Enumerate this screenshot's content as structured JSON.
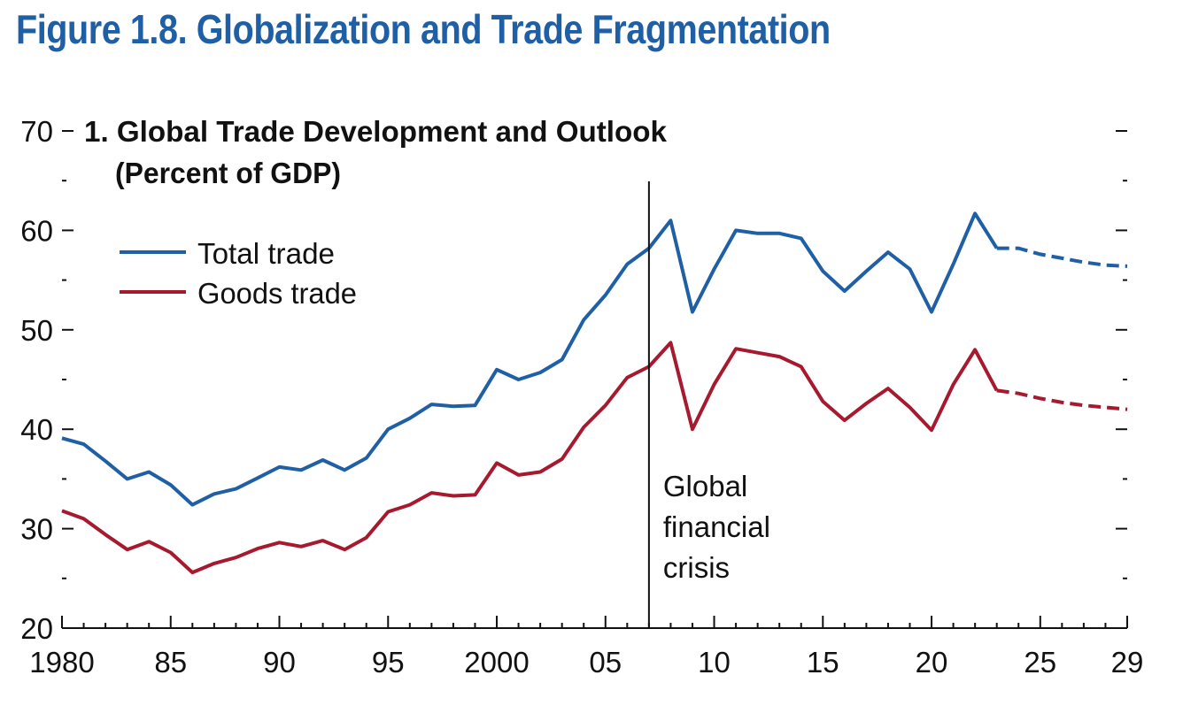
{
  "figure_title": "Figure 1.8.  Globalization and Trade Fragmentation",
  "chart_data": {
    "type": "line",
    "title": "1. Global Trade Development and Outlook",
    "subtitle": "(Percent of GDP)",
    "xlabel": "",
    "ylabel": "",
    "xlim": [
      1980,
      2029
    ],
    "ylim": [
      20,
      70
    ],
    "y_major_ticks": [
      20,
      30,
      40,
      50,
      60,
      70
    ],
    "y_tick_labels": [
      "20",
      "30",
      "40",
      "50",
      "60",
      "70"
    ],
    "x_ticks": [
      1980,
      1985,
      1990,
      1995,
      2000,
      2005,
      2010,
      2015,
      2020,
      2025,
      2029
    ],
    "x_tick_labels": [
      "1980",
      "85",
      "90",
      "95",
      "2000",
      "05",
      "10",
      "15",
      "20",
      "25",
      "29"
    ],
    "grid": false,
    "legend_position": "top-left",
    "forecast_start": 2023,
    "series": [
      {
        "name": "Total trade",
        "color": "#1f5fa6",
        "x": [
          1980,
          1981,
          1982,
          1983,
          1984,
          1985,
          1986,
          1987,
          1988,
          1989,
          1990,
          1991,
          1992,
          1993,
          1994,
          1995,
          1996,
          1997,
          1998,
          1999,
          2000,
          2001,
          2002,
          2003,
          2004,
          2005,
          2006,
          2007,
          2008,
          2009,
          2010,
          2011,
          2012,
          2013,
          2014,
          2015,
          2016,
          2017,
          2018,
          2019,
          2020,
          2021,
          2022,
          2023,
          2024,
          2025,
          2026,
          2027,
          2028,
          2029
        ],
        "values": [
          39.1,
          38.5,
          36.8,
          35.0,
          35.7,
          34.4,
          32.4,
          33.5,
          34.0,
          35.1,
          36.2,
          35.9,
          36.9,
          35.9,
          37.1,
          40.0,
          41.1,
          42.5,
          42.3,
          42.4,
          46.0,
          45.0,
          45.7,
          47.0,
          51.0,
          53.5,
          56.6,
          58.2,
          61.0,
          51.8,
          56.1,
          60.0,
          59.7,
          59.7,
          59.2,
          55.9,
          53.9,
          55.9,
          57.8,
          56.1,
          51.8,
          56.6,
          61.7,
          58.2,
          58.2,
          57.6,
          57.2,
          56.8,
          56.5,
          56.4
        ]
      },
      {
        "name": "Goods trade",
        "color": "#a6192e",
        "x": [
          1980,
          1981,
          1982,
          1983,
          1984,
          1985,
          1986,
          1987,
          1988,
          1989,
          1990,
          1991,
          1992,
          1993,
          1994,
          1995,
          1996,
          1997,
          1998,
          1999,
          2000,
          2001,
          2002,
          2003,
          2004,
          2005,
          2006,
          2007,
          2008,
          2009,
          2010,
          2011,
          2012,
          2013,
          2014,
          2015,
          2016,
          2017,
          2018,
          2019,
          2020,
          2021,
          2022,
          2023,
          2024,
          2025,
          2026,
          2027,
          2028,
          2029
        ],
        "values": [
          31.8,
          31.0,
          29.4,
          27.9,
          28.7,
          27.6,
          25.6,
          26.5,
          27.1,
          28.0,
          28.6,
          28.2,
          28.8,
          27.9,
          29.1,
          31.7,
          32.4,
          33.6,
          33.3,
          33.4,
          36.6,
          35.4,
          35.7,
          37.0,
          40.2,
          42.4,
          45.2,
          46.3,
          48.7,
          40.0,
          44.5,
          48.1,
          47.7,
          47.3,
          46.3,
          42.8,
          40.9,
          42.6,
          44.1,
          42.2,
          39.9,
          44.5,
          48.0,
          43.9,
          43.6,
          43.1,
          42.7,
          42.4,
          42.2,
          42.0
        ]
      }
    ],
    "annotations": [
      {
        "x": 2007,
        "lines": [
          "Global",
          "financial",
          "crisis"
        ]
      }
    ]
  }
}
